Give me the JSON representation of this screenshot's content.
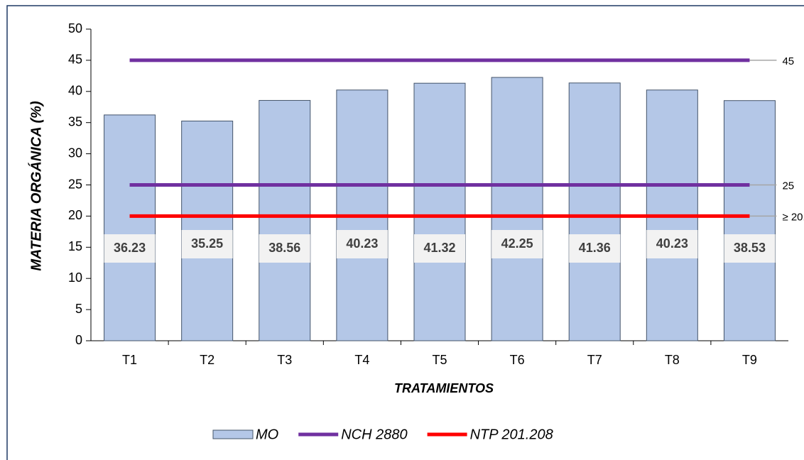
{
  "chart_data": {
    "type": "bar",
    "x_label": "TRATAMIENTOS",
    "y_label": "MATERIA ORGÁNICA (%)",
    "categories": [
      "T1",
      "T2",
      "T3",
      "T4",
      "T5",
      "T6",
      "T7",
      "T8",
      "T9"
    ],
    "series": [
      {
        "name": "MO",
        "color": "#b4c7e7",
        "values": [
          36.23,
          35.25,
          38.56,
          40.23,
          41.32,
          42.25,
          41.36,
          40.23,
          38.53
        ]
      }
    ],
    "reference_lines": [
      {
        "name": "NCH 2880",
        "color": "#7030a0",
        "values": [
          45,
          25
        ]
      },
      {
        "name": "NTP 201.208",
        "color": "#ff0000",
        "values": [
          20
        ],
        "value_labels": [
          "≥ 20.0"
        ]
      }
    ],
    "ylim": [
      0,
      50
    ],
    "yticks": [
      0,
      5,
      10,
      15,
      20,
      25,
      30,
      35,
      40,
      45,
      50
    ],
    "grid": false,
    "legend": "bottom"
  }
}
